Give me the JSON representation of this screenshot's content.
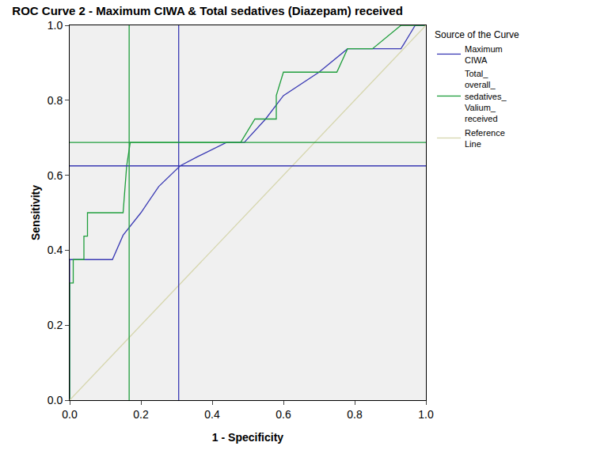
{
  "chart_data": {
    "type": "line",
    "title": "ROC Curve 2 - Maximum CIWA & Total sedatives (Diazepam) received",
    "x_label": "1 - Specificity",
    "y_label": "Sensitivity",
    "legend_title": "Source of the Curve",
    "legend": "right",
    "grid": false,
    "xlim": [
      0,
      1
    ],
    "ylim": [
      0,
      1
    ],
    "xticks": [
      {
        "value": 0,
        "label": "0.0"
      },
      {
        "value": 0.2,
        "label": "0.2"
      },
      {
        "value": 0.4,
        "label": "0.4"
      },
      {
        "value": 0.6,
        "label": "0.6"
      },
      {
        "value": 0.8,
        "label": "0.8"
      },
      {
        "value": 1,
        "label": "1.0"
      }
    ],
    "yticks": [
      {
        "value": 0,
        "label": "0.0"
      },
      {
        "value": 0.2,
        "label": "0.2"
      },
      {
        "value": 0.4,
        "label": "0.4"
      },
      {
        "value": 0.6,
        "label": "0.6"
      },
      {
        "value": 0.8,
        "label": "0.8"
      },
      {
        "value": 1,
        "label": "1.0"
      }
    ],
    "series": [
      {
        "name": "Maximum CIWA",
        "color": "#3a3ab4",
        "x": [
          0,
          0,
          0.12,
          0.15,
          0.2,
          0.25,
          0.31,
          0.36,
          0.44,
          0.49,
          0.55,
          0.6,
          0.7,
          0.78,
          0.93,
          0.97,
          1
        ],
        "values": [
          0,
          0.375,
          0.375,
          0.44,
          0.5,
          0.57,
          0.625,
          0.65,
          0.6875,
          0.6875,
          0.75,
          0.8125,
          0.875,
          0.9375,
          0.9375,
          1,
          1
        ],
        "cutoff": {
          "x": 0.306,
          "y": 0.625
        }
      },
      {
        "name": "Total_ overall_ sedatives_ Valium_ received",
        "color": "#1f9e3c",
        "x": [
          0,
          0,
          0.01,
          0.01,
          0.04,
          0.04,
          0.05,
          0.05,
          0.15,
          0.155,
          0.16,
          0.17,
          0.48,
          0.52,
          0.58,
          0.58,
          0.6,
          0.75,
          0.78,
          0.85,
          0.93,
          1
        ],
        "values": [
          0,
          0.3125,
          0.3125,
          0.375,
          0.375,
          0.4375,
          0.4375,
          0.5,
          0.5,
          0.5625,
          0.625,
          0.6875,
          0.6875,
          0.75,
          0.75,
          0.8125,
          0.875,
          0.875,
          0.9375,
          0.9375,
          1,
          1
        ],
        "cutoff": {
          "x": 0.167,
          "y": 0.6875
        }
      },
      {
        "name": "Reference Line",
        "color": "#d6d6ae",
        "x": [
          0,
          1
        ],
        "values": [
          0,
          1
        ]
      }
    ]
  }
}
